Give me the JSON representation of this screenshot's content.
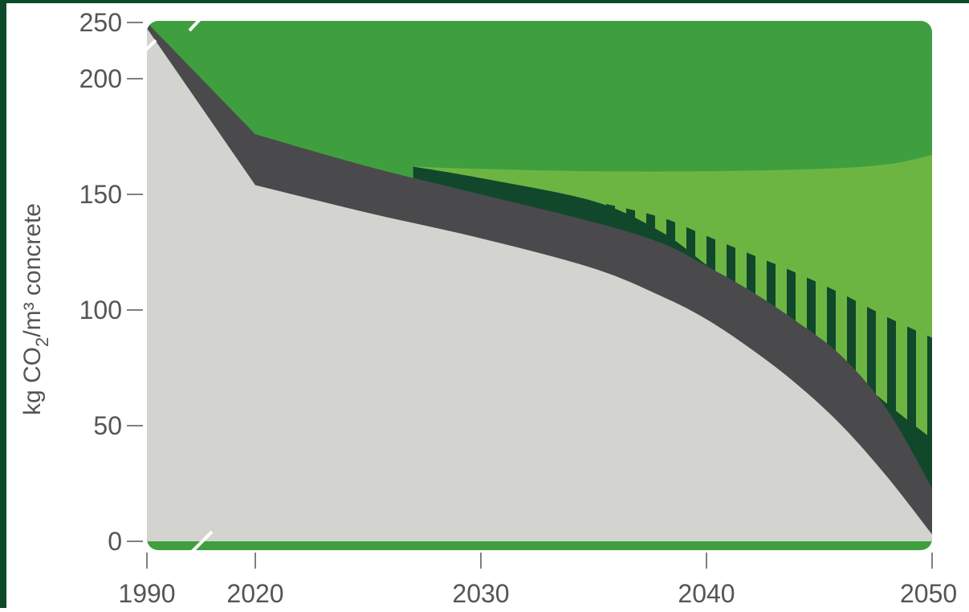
{
  "chart_data": {
    "type": "area",
    "title": "",
    "xlabel": "",
    "ylabel": "kg CO₂/m³ concrete",
    "ylabel_parts": {
      "main": "kg CO",
      "sub": "2",
      "tail": "/m³ concrete"
    },
    "xlim": [
      1990,
      2050
    ],
    "ylim": [
      0,
      250
    ],
    "axis_break_x": [
      1990,
      2020
    ],
    "axis_break_y": [
      200,
      250
    ],
    "x_ticks": [
      {
        "value": 1990,
        "label": "1990"
      },
      {
        "value": 2020,
        "label": "2020"
      },
      {
        "value": 2030,
        "label": "2030"
      },
      {
        "value": 2040,
        "label": "2040"
      },
      {
        "value": 2050,
        "label": "2050"
      }
    ],
    "y_ticks": [
      {
        "value": 0,
        "label": "0"
      },
      {
        "value": 50,
        "label": "50"
      },
      {
        "value": 100,
        "label": "100"
      },
      {
        "value": 150,
        "label": "150"
      },
      {
        "value": 200,
        "label": "200"
      },
      {
        "value": 250,
        "label": "250"
      }
    ],
    "grid": false,
    "legend": "none",
    "series": [
      {
        "color": "#d3d3d0",
        "x": [
          1990,
          2020,
          2025,
          2030,
          2035,
          2038,
          2040,
          2042,
          2044,
          2046,
          2048,
          2050
        ],
        "values": [
          245,
          154,
          142,
          131,
          118,
          106,
          96,
          83,
          68,
          50,
          28,
          3
        ]
      },
      {
        "color": "#4a4a4d",
        "x": [
          1990,
          2020,
          2025,
          2030,
          2035,
          2038,
          2040,
          2042,
          2044,
          2046,
          2048,
          2050
        ],
        "values": [
          250,
          176,
          162,
          150,
          138,
          129,
          119,
          108,
          95,
          80,
          57,
          23
        ]
      },
      {
        "color": "#11482b",
        "x": [
          2027,
          2030,
          2035,
          2038,
          2040,
          2042,
          2044,
          2046,
          2048,
          2050
        ],
        "values": [
          162,
          157,
          147,
          140,
          132,
          124,
          116,
          107,
          97,
          88
        ]
      },
      {
        "color": "#6db542",
        "x": [
          2027,
          2030,
          2035,
          2040,
          2045,
          2048,
          2050
        ],
        "values": [
          162,
          161,
          160,
          160,
          161,
          163,
          167
        ]
      },
      {
        "color": "#3f9f3f",
        "x": [
          1990,
          2050
        ],
        "values": [
          250,
          250
        ]
      }
    ],
    "colors": {
      "frame": "#0c4a2a",
      "concrete": "#d3d3d0",
      "band": "#4a4a4d",
      "dark_green": "#11482b",
      "light_green": "#6db542",
      "top_green": "#3f9f3f",
      "axis": "#555555"
    }
  }
}
